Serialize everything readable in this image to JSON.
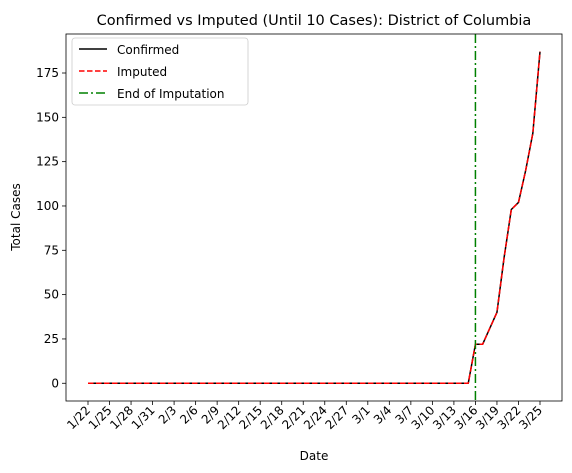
{
  "chart_data": {
    "type": "line",
    "title": "Confirmed vs Imputed (Until 10 Cases): District of Columbia",
    "xlabel": "Date",
    "ylabel": "Total Cases",
    "ylim": [
      -10,
      197
    ],
    "y_ticks": [
      0,
      25,
      50,
      75,
      100,
      125,
      150,
      175
    ],
    "x_tick_labels": [
      "1/22",
      "1/25",
      "1/28",
      "1/31",
      "2/3",
      "2/6",
      "2/9",
      "2/12",
      "2/15",
      "2/18",
      "2/21",
      "2/24",
      "2/27",
      "3/1",
      "3/4",
      "3/7",
      "3/10",
      "3/13",
      "3/16",
      "3/19",
      "3/22",
      "3/25"
    ],
    "x_tick_label_rotation": 45,
    "grid": false,
    "legend_position": "top-left",
    "dates": [
      "1/22",
      "1/23",
      "1/24",
      "1/25",
      "1/26",
      "1/27",
      "1/28",
      "1/29",
      "1/30",
      "1/31",
      "2/1",
      "2/2",
      "2/3",
      "2/4",
      "2/5",
      "2/6",
      "2/7",
      "2/8",
      "2/9",
      "2/10",
      "2/11",
      "2/12",
      "2/13",
      "2/14",
      "2/15",
      "2/16",
      "2/17",
      "2/18",
      "2/19",
      "2/20",
      "2/21",
      "2/22",
      "2/23",
      "2/24",
      "2/25",
      "2/26",
      "2/27",
      "2/28",
      "2/29",
      "3/1",
      "3/2",
      "3/3",
      "3/4",
      "3/5",
      "3/6",
      "3/7",
      "3/8",
      "3/9",
      "3/10",
      "3/11",
      "3/12",
      "3/13",
      "3/14",
      "3/15",
      "3/16",
      "3/17",
      "3/18",
      "3/19",
      "3/20",
      "3/21",
      "3/22",
      "3/23",
      "3/24",
      "3/25"
    ],
    "series": [
      {
        "name": "Confirmed",
        "color": "#000000",
        "style": "solid",
        "values": [
          0,
          0,
          0,
          0,
          0,
          0,
          0,
          0,
          0,
          0,
          0,
          0,
          0,
          0,
          0,
          0,
          0,
          0,
          0,
          0,
          0,
          0,
          0,
          0,
          0,
          0,
          0,
          0,
          0,
          0,
          0,
          0,
          0,
          0,
          0,
          0,
          0,
          0,
          0,
          0,
          0,
          0,
          0,
          0,
          0,
          0,
          0,
          0,
          0,
          0,
          0,
          0,
          0,
          0,
          22,
          22,
          31,
          40,
          71,
          98,
          102,
          120,
          141,
          187
        ]
      },
      {
        "name": "Imputed",
        "color": "#ff0000",
        "style": "dashed",
        "values": [
          0,
          0,
          0,
          0,
          0,
          0,
          0,
          0,
          0,
          0,
          0,
          0,
          0,
          0,
          0,
          0,
          0,
          0,
          0,
          0,
          0,
          0,
          0,
          0,
          0,
          0,
          0,
          0,
          0,
          0,
          0,
          0,
          0,
          0,
          0,
          0,
          0,
          0,
          0,
          0,
          0,
          0,
          0,
          0,
          0,
          0,
          0,
          0,
          0,
          0,
          0,
          0,
          0,
          0,
          22,
          22,
          31,
          40,
          71,
          98,
          102,
          120,
          141,
          187
        ]
      }
    ],
    "vlines": [
      {
        "name": "End of Imputation",
        "x": "3/16",
        "color": "#008000",
        "style": "dashdot"
      }
    ]
  }
}
